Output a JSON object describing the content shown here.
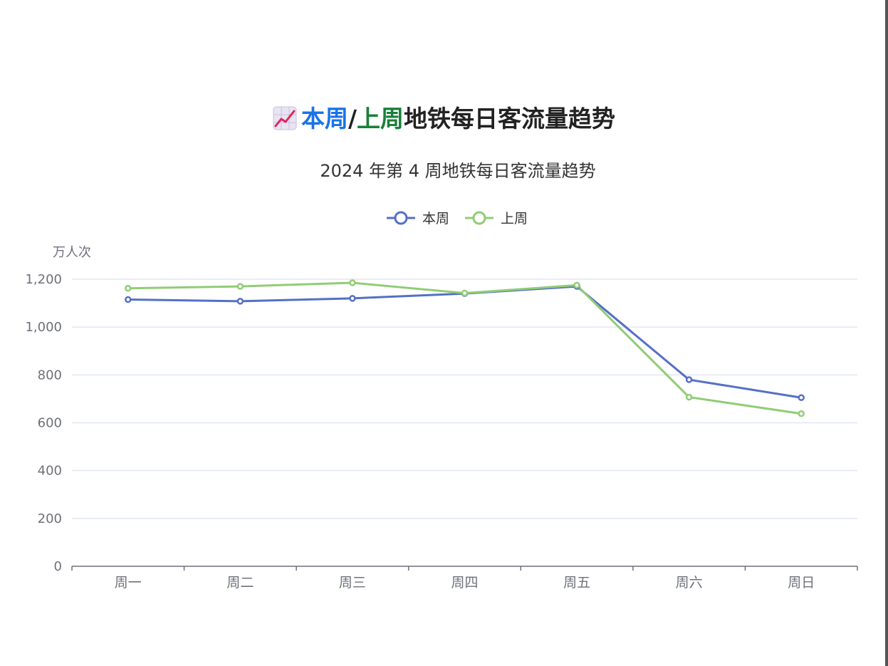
{
  "page": {
    "icon": "chart-increasing-icon",
    "title_part1": "本周",
    "title_sep": "/",
    "title_part2": "上周",
    "title_part3": "地铁每日客流量趋势",
    "colors": {
      "part1": "#1a73e8",
      "part2": "#188038",
      "rest": "#222222"
    }
  },
  "chart_data": {
    "type": "line",
    "title": "2024 年第 4 周地铁每日客流量趋势",
    "ylabel": "万人次",
    "categories": [
      "周一",
      "周二",
      "周三",
      "周四",
      "周五",
      "周六",
      "周日"
    ],
    "ylim": [
      0,
      1200
    ],
    "yticks": [
      0,
      200,
      400,
      600,
      800,
      1000,
      1200
    ],
    "ytick_labels": [
      "0",
      "200",
      "400",
      "600",
      "800",
      "1,000",
      "1,200"
    ],
    "legend_position": "top-center",
    "grid": true,
    "series": [
      {
        "name": "本周",
        "color": "#5470c6",
        "values": [
          1115,
          1108,
          1120,
          1140,
          1170,
          780,
          705
        ]
      },
      {
        "name": "上周",
        "color": "#91cc75",
        "values": [
          1162,
          1170,
          1185,
          1142,
          1175,
          707,
          638
        ]
      }
    ]
  }
}
